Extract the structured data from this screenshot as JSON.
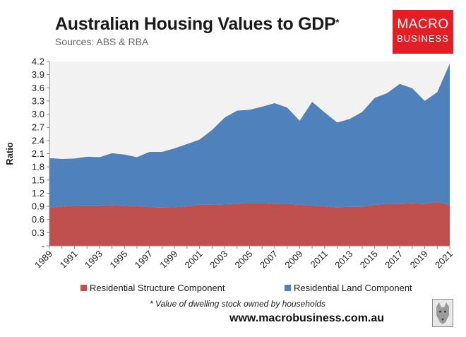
{
  "header": {
    "title": "Australian Housing Values to GDP",
    "title_mark": "*",
    "subtitle": "Sources: ABS & RBA"
  },
  "logo": {
    "line1": "MACRO",
    "line2": "BUSINESS",
    "bg": "#e31e24"
  },
  "footer": {
    "note": "* Value of dwelling stock owned by households",
    "url": "www.macrobusiness.com.au",
    "badge_icon": "wolf-logo-icon"
  },
  "chart_data": {
    "type": "area",
    "stacked": true,
    "ylabel": "Ratio",
    "ylim": [
      0,
      4.2
    ],
    "yticks": [
      0,
      0.3,
      0.6,
      0.9,
      1.2,
      1.5,
      1.8,
      2.1,
      2.4,
      2.7,
      3.0,
      3.3,
      3.6,
      3.9,
      4.2
    ],
    "ytick_labels": [
      "-",
      "0.3",
      "0.6",
      "0.9",
      "1.2",
      "1.5",
      "1.8",
      "2.1",
      "2.4",
      "2.7",
      "3.0",
      "3.3",
      "3.6",
      "3.9",
      "4.2"
    ],
    "x": [
      1989,
      1990,
      1991,
      1992,
      1993,
      1994,
      1995,
      1996,
      1997,
      1998,
      1999,
      2000,
      2001,
      2002,
      2003,
      2004,
      2005,
      2006,
      2007,
      2008,
      2009,
      2010,
      2011,
      2012,
      2013,
      2014,
      2015,
      2016,
      2017,
      2018,
      2019,
      2020,
      2021
    ],
    "xtick_labels": [
      "1989",
      "1991",
      "1993",
      "1995",
      "1997",
      "1999",
      "2001",
      "2003",
      "2005",
      "2007",
      "2009",
      "2011",
      "2013",
      "2015",
      "2017",
      "2019",
      "2021"
    ],
    "grid": false,
    "plot_background": "#f2f2f2",
    "legend_position": "bottom",
    "series": [
      {
        "name": "Residential Structure Component",
        "color": "#c0504d",
        "values": [
          0.87,
          0.9,
          0.92,
          0.92,
          0.92,
          0.93,
          0.92,
          0.91,
          0.88,
          0.87,
          0.88,
          0.9,
          0.94,
          0.94,
          0.95,
          0.96,
          0.98,
          0.98,
          0.96,
          0.96,
          0.94,
          0.92,
          0.9,
          0.88,
          0.89,
          0.89,
          0.94,
          0.96,
          0.96,
          0.97,
          0.96,
          1.0,
          0.94
        ]
      },
      {
        "name": "Residential Land Component",
        "color": "#4f81bd",
        "values": [
          1.13,
          1.08,
          1.07,
          1.11,
          1.1,
          1.18,
          1.16,
          1.11,
          1.26,
          1.27,
          1.34,
          1.42,
          1.48,
          1.7,
          1.97,
          2.12,
          2.12,
          2.19,
          2.29,
          2.19,
          1.91,
          2.36,
          2.14,
          1.93,
          2.0,
          2.16,
          2.43,
          2.52,
          2.73,
          2.62,
          2.34,
          2.5,
          3.21
        ]
      }
    ]
  }
}
